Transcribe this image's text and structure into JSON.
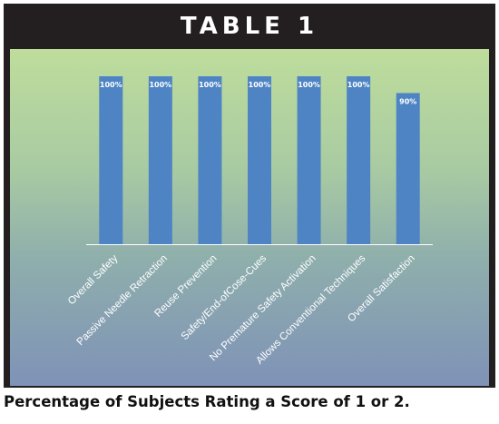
{
  "header": {
    "title": "TABLE 1"
  },
  "caption": "Percentage of Subjects Rating a Score of 1 or 2.",
  "colors": {
    "bar": "#4f84c4",
    "header_bg": "#231f20",
    "axis": "#ffffff"
  },
  "chart_data": {
    "type": "bar",
    "title": "",
    "xlabel": "",
    "ylabel": "",
    "ylim": [
      0,
      100
    ],
    "grid": false,
    "categories": [
      "Overall Safety",
      "Passive Needle Retraction",
      "Reuse Prevention",
      "Safety/End-ofCose-Cues",
      "No Premature Safety Activation",
      "Allows Conventional Techniques",
      "Overall Satisfaction"
    ],
    "values": [
      100,
      100,
      100,
      100,
      100,
      100,
      90
    ],
    "data_labels": [
      "100%",
      "100%",
      "100%",
      "100%",
      "100%",
      "100%",
      "90%"
    ]
  }
}
